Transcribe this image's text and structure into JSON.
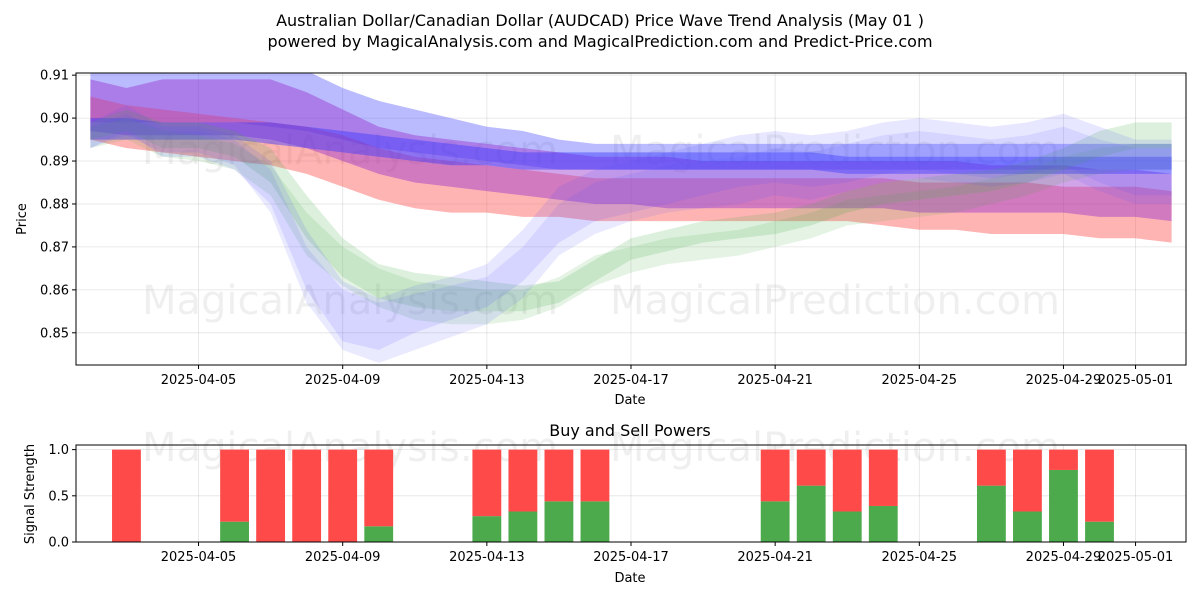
{
  "chart_data": [
    {
      "type": "area",
      "title_line1": "Australian Dollar/Canadian Dollar (AUDCAD) Price Wave Trend Analysis (May 01 )",
      "title_line2": "powered by MagicalAnalysis.com and MagicalPrediction.com and Predict-Price.com",
      "xlabel": "Date",
      "ylabel": "Price",
      "ylim": [
        0.8425,
        0.9105
      ],
      "yticks": [
        0.85,
        0.86,
        0.87,
        0.88,
        0.89,
        0.9,
        0.91
      ],
      "ytick_labels": [
        "0.85",
        "0.86",
        "0.87",
        "0.88",
        "0.89",
        "0.90",
        "0.91"
      ],
      "xlim": [
        1.6,
        32.4
      ],
      "xticks": [
        5,
        9,
        13,
        17,
        21,
        25,
        29,
        31
      ],
      "xtick_labels": [
        "2025-04-05",
        "2025-04-09",
        "2025-04-13",
        "2025-04-17",
        "2025-04-21",
        "2025-04-25",
        "2025-04-29",
        "2025-05-01"
      ],
      "watermarks": [
        "MagicalAnalysis.com",
        "MagicalPrediction.com",
        "MagicalAnalysis.com",
        "MagicalPrediction.com"
      ],
      "band_x": [
        2,
        3,
        4,
        5,
        6,
        7,
        8,
        9,
        10,
        11,
        12,
        13,
        14,
        15,
        16,
        17,
        18,
        19,
        20,
        21,
        22,
        23,
        24,
        25,
        26,
        27,
        28,
        29,
        30,
        31,
        32
      ],
      "series": [
        {
          "name": "blue-wide-upper",
          "color": "#3a3aff",
          "alpha": 0.35,
          "upper": [
            0.911,
            0.911,
            0.911,
            0.911,
            0.911,
            0.911,
            0.911,
            0.907,
            0.904,
            0.902,
            0.9,
            0.898,
            0.897,
            0.895,
            0.894,
            0.894,
            0.894,
            0.894,
            0.894,
            0.894,
            0.894,
            0.894,
            0.894,
            0.894,
            0.894,
            0.894,
            0.894,
            0.894,
            0.894,
            0.894,
            0.894
          ],
          "lower": [
            0.899,
            0.899,
            0.899,
            0.899,
            0.899,
            0.898,
            0.897,
            0.895,
            0.893,
            0.892,
            0.891,
            0.89,
            0.889,
            0.888,
            0.888,
            0.888,
            0.888,
            0.888,
            0.888,
            0.888,
            0.888,
            0.888,
            0.888,
            0.888,
            0.888,
            0.888,
            0.888,
            0.888,
            0.888,
            0.888,
            0.888
          ]
        },
        {
          "name": "red-upper",
          "color": "#ff4444",
          "alpha": 0.4,
          "upper": [
            0.905,
            0.903,
            0.902,
            0.901,
            0.9,
            0.899,
            0.898,
            0.896,
            0.893,
            0.891,
            0.89,
            0.889,
            0.888,
            0.887,
            0.886,
            0.886,
            0.886,
            0.886,
            0.886,
            0.886,
            0.886,
            0.886,
            0.886,
            0.885,
            0.885,
            0.885,
            0.885,
            0.884,
            0.884,
            0.884,
            0.883
          ],
          "lower": [
            0.895,
            0.893,
            0.892,
            0.891,
            0.89,
            0.889,
            0.887,
            0.884,
            0.881,
            0.879,
            0.878,
            0.878,
            0.877,
            0.877,
            0.876,
            0.876,
            0.876,
            0.876,
            0.876,
            0.876,
            0.876,
            0.876,
            0.875,
            0.874,
            0.874,
            0.873,
            0.873,
            0.873,
            0.872,
            0.872,
            0.871
          ]
        },
        {
          "name": "purple-upper",
          "color": "#9933cc",
          "alpha": 0.45,
          "upper": [
            0.909,
            0.907,
            0.909,
            0.909,
            0.909,
            0.909,
            0.906,
            0.902,
            0.898,
            0.896,
            0.895,
            0.894,
            0.893,
            0.892,
            0.891,
            0.891,
            0.891,
            0.89,
            0.89,
            0.89,
            0.89,
            0.89,
            0.89,
            0.89,
            0.89,
            0.889,
            0.889,
            0.889,
            0.888,
            0.888,
            0.887
          ],
          "lower": [
            0.897,
            0.896,
            0.896,
            0.896,
            0.896,
            0.895,
            0.893,
            0.89,
            0.887,
            0.885,
            0.884,
            0.883,
            0.882,
            0.881,
            0.88,
            0.88,
            0.879,
            0.879,
            0.879,
            0.879,
            0.879,
            0.879,
            0.879,
            0.878,
            0.878,
            0.878,
            0.878,
            0.878,
            0.877,
            0.877,
            0.876
          ]
        },
        {
          "name": "blue-narrow",
          "color": "#3a3aff",
          "alpha": 0.45,
          "upper": [
            0.9,
            0.9,
            0.899,
            0.899,
            0.899,
            0.899,
            0.898,
            0.897,
            0.896,
            0.895,
            0.894,
            0.893,
            0.892,
            0.892,
            0.892,
            0.892,
            0.892,
            0.892,
            0.892,
            0.892,
            0.892,
            0.891,
            0.891,
            0.891,
            0.891,
            0.891,
            0.891,
            0.891,
            0.891,
            0.891,
            0.891
          ],
          "lower": [
            0.895,
            0.895,
            0.895,
            0.895,
            0.895,
            0.894,
            0.893,
            0.892,
            0.891,
            0.89,
            0.889,
            0.889,
            0.888,
            0.888,
            0.888,
            0.888,
            0.888,
            0.888,
            0.888,
            0.888,
            0.888,
            0.887,
            0.887,
            0.887,
            0.887,
            0.887,
            0.887,
            0.887,
            0.887,
            0.887,
            0.887
          ]
        },
        {
          "name": "green-wave-1",
          "color": "#44aa44",
          "alpha": 0.18,
          "upper": [
            0.899,
            0.902,
            0.899,
            0.899,
            0.897,
            0.893,
            0.882,
            0.872,
            0.866,
            0.864,
            0.863,
            0.862,
            0.861,
            0.862,
            0.867,
            0.872,
            0.874,
            0.876,
            0.877,
            0.878,
            0.88,
            0.883,
            0.885,
            0.886,
            0.887,
            0.888,
            0.89,
            0.893,
            0.897,
            0.899,
            0.899
          ],
          "lower": [
            0.895,
            0.897,
            0.893,
            0.893,
            0.891,
            0.885,
            0.872,
            0.863,
            0.858,
            0.856,
            0.855,
            0.855,
            0.855,
            0.857,
            0.862,
            0.867,
            0.869,
            0.871,
            0.872,
            0.873,
            0.875,
            0.878,
            0.88,
            0.881,
            0.882,
            0.883,
            0.885,
            0.888,
            0.891,
            0.893,
            0.893
          ]
        },
        {
          "name": "green-wave-2",
          "color": "#44aa44",
          "alpha": 0.14,
          "upper": [
            0.898,
            0.9,
            0.897,
            0.896,
            0.894,
            0.889,
            0.878,
            0.87,
            0.865,
            0.862,
            0.861,
            0.86,
            0.86,
            0.863,
            0.868,
            0.87,
            0.872,
            0.873,
            0.874,
            0.876,
            0.878,
            0.881,
            0.882,
            0.883,
            0.884,
            0.886,
            0.888,
            0.891,
            0.893,
            0.894,
            0.894
          ],
          "lower": [
            0.893,
            0.895,
            0.891,
            0.89,
            0.888,
            0.882,
            0.868,
            0.861,
            0.856,
            0.853,
            0.852,
            0.852,
            0.853,
            0.856,
            0.861,
            0.864,
            0.866,
            0.867,
            0.868,
            0.87,
            0.872,
            0.875,
            0.876,
            0.877,
            0.878,
            0.88,
            0.882,
            0.885,
            0.887,
            0.888,
            0.888
          ]
        },
        {
          "name": "blue-wave-1",
          "color": "#5555ff",
          "alpha": 0.14,
          "upper": [
            0.899,
            0.903,
            0.898,
            0.898,
            0.896,
            0.89,
            0.874,
            0.862,
            0.858,
            0.861,
            0.863,
            0.866,
            0.874,
            0.884,
            0.888,
            0.89,
            0.892,
            0.894,
            0.896,
            0.897,
            0.896,
            0.897,
            0.899,
            0.9,
            0.899,
            0.898,
            0.899,
            0.901,
            0.898,
            0.895,
            0.895
          ],
          "lower": [
            0.893,
            0.897,
            0.891,
            0.891,
            0.888,
            0.88,
            0.86,
            0.848,
            0.846,
            0.85,
            0.853,
            0.856,
            0.862,
            0.871,
            0.876,
            0.878,
            0.88,
            0.882,
            0.884,
            0.885,
            0.884,
            0.885,
            0.887,
            0.888,
            0.887,
            0.886,
            0.887,
            0.889,
            0.885,
            0.882,
            0.882
          ]
        },
        {
          "name": "blue-wave-2",
          "color": "#5555ff",
          "alpha": 0.12,
          "upper": [
            0.898,
            0.901,
            0.897,
            0.897,
            0.895,
            0.888,
            0.87,
            0.86,
            0.857,
            0.859,
            0.861,
            0.863,
            0.87,
            0.88,
            0.885,
            0.887,
            0.889,
            0.89,
            0.891,
            0.893,
            0.892,
            0.894,
            0.896,
            0.897,
            0.896,
            0.895,
            0.896,
            0.898,
            0.895,
            0.893,
            0.893
          ],
          "lower": [
            0.893,
            0.896,
            0.892,
            0.892,
            0.889,
            0.878,
            0.857,
            0.846,
            0.843,
            0.846,
            0.849,
            0.852,
            0.858,
            0.868,
            0.873,
            0.876,
            0.878,
            0.879,
            0.88,
            0.882,
            0.881,
            0.883,
            0.885,
            0.886,
            0.885,
            0.884,
            0.885,
            0.887,
            0.883,
            0.88,
            0.88
          ]
        }
      ]
    },
    {
      "type": "bar",
      "title": "Buy and Sell Powers",
      "xlabel": "Date",
      "ylabel": "Signal Strength",
      "ylim": [
        0,
        1.05
      ],
      "yticks": [
        0,
        0.5,
        1.0
      ],
      "ytick_labels": [
        "0.0",
        "0.5",
        "1.0"
      ],
      "xlim": [
        1.6,
        32.4
      ],
      "xticks": [
        5,
        9,
        13,
        17,
        21,
        25,
        29,
        31
      ],
      "xtick_labels": [
        "2025-04-05",
        "2025-04-09",
        "2025-04-13",
        "2025-04-17",
        "2025-04-21",
        "2025-04-25",
        "2025-04-29",
        "2025-05-01"
      ],
      "watermarks": [
        "MagicalAnalysis.com",
        "MagicalPrediction.com"
      ],
      "buy_color": "#4caa4c",
      "sell_color": "#ff4a4a",
      "x": [
        3,
        6,
        7,
        8,
        9,
        10,
        13,
        14,
        15,
        16,
        21,
        22,
        23,
        24,
        27,
        28,
        29,
        30
      ],
      "series": [
        {
          "name": "Buy",
          "values": [
            0,
            0.22,
            0,
            0,
            0,
            0.17,
            0.28,
            0.33,
            0.44,
            0.44,
            0.44,
            0.61,
            0.33,
            0.39,
            0.61,
            0.33,
            0.78,
            0.22
          ]
        },
        {
          "name": "Sell",
          "values": [
            1,
            0.78,
            1,
            1,
            1,
            0.83,
            0.72,
            0.67,
            0.56,
            0.56,
            0.56,
            0.39,
            0.67,
            0.61,
            0.39,
            0.67,
            0.22,
            0.78
          ]
        }
      ]
    }
  ]
}
